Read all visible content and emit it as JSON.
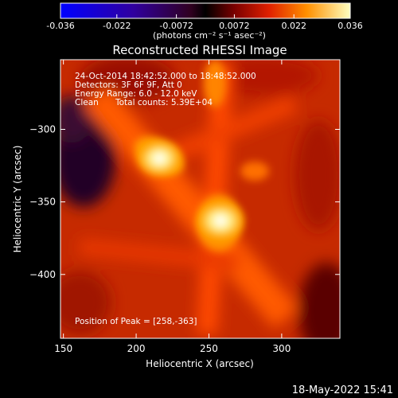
{
  "colorbar": {
    "min_label": "-0.036",
    "tick_labels": [
      "-0.036",
      "-0.022",
      "-0.0072",
      "0.0072",
      "0.022",
      "0.036"
    ],
    "tick_values": [
      -0.036,
      -0.022,
      -0.0072,
      0.0072,
      0.022,
      0.036
    ],
    "range": [
      -0.036,
      0.036
    ],
    "unit_label": "(photons cm⁻² s⁻¹ asec⁻²)"
  },
  "chart_data": {
    "type": "heatmap",
    "title": "Reconstructed RHESSI Image",
    "xlabel": "Heliocentric X (arcsec)",
    "ylabel": "Heliocentric Y (arcsec)",
    "xlim": [
      148,
      340
    ],
    "ylim": [
      -444,
      -252
    ],
    "x_ticks": [
      150,
      200,
      250,
      300
    ],
    "y_ticks": [
      -300,
      -350,
      -400
    ],
    "sources": [
      {
        "x": 216,
        "y": -320,
        "peak": 0.03
      },
      {
        "x": 258,
        "y": -363,
        "peak": 0.036
      }
    ],
    "annotations": {
      "time": "24-Oct-2014 18:42:52.000 to 18:48:52.000",
      "detectors": "Detectors: 3F 6F 9F, Att 0",
      "energy": "Energy Range: 6.0 - 12.0 keV",
      "method": "Clean",
      "counts": "Total counts: 5.39E+04",
      "peak": "Position of Peak = [258,-363]"
    }
  },
  "footer": {
    "date": "18-May-2022 15:41"
  }
}
